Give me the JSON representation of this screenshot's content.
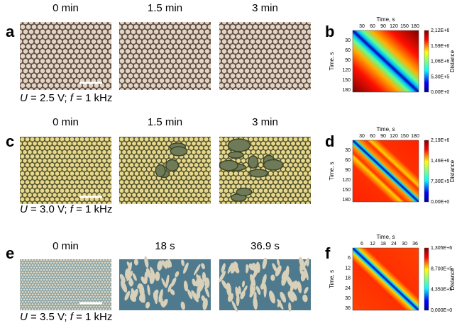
{
  "panels": [
    {
      "label": "a",
      "frames": [
        "0 min",
        "1.5 min",
        "3 min"
      ],
      "condition": {
        "v1": "U",
        "t1": " = 2.5 V; ",
        "v2": "f",
        "t2": " = 1 kHz"
      },
      "map": {
        "label": "b",
        "title": "Time, s",
        "ylabel": "Time, s",
        "xticks": [
          "30",
          "60",
          "90",
          "120",
          "150",
          "180"
        ],
        "yticks": [
          "30",
          "60",
          "90",
          "120",
          "150",
          "180"
        ],
        "cbar_label": "Distance",
        "cbar_ticks": [
          "2,12E+6",
          "1,59E+6",
          "1,06E+6",
          "5,30E+5",
          "0,00E+0"
        ]
      }
    },
    {
      "label": "c",
      "frames": [
        "0 min",
        "1.5 min",
        "3 min"
      ],
      "condition": {
        "v1": "U",
        "t1": " = 3.0 V; ",
        "v2": "f",
        "t2": " = 1 kHz"
      },
      "map": {
        "label": "d",
        "title": "Time, s",
        "ylabel": "Time, s",
        "xticks": [
          "30",
          "60",
          "90",
          "120",
          "150",
          "180"
        ],
        "yticks": [
          "30",
          "60",
          "90",
          "120",
          "150",
          "180"
        ],
        "cbar_label": "Distance",
        "cbar_ticks": [
          "2,19E+6",
          "1,46E+6",
          "7,30E+5",
          "0,00E+0"
        ]
      }
    },
    {
      "label": "e",
      "frames": [
        "0 min",
        "18 s",
        "36.9 s"
      ],
      "condition": {
        "v1": "U",
        "t1": " = 3.5 V; ",
        "v2": "f",
        "t2": " = 1 kHz"
      },
      "map": {
        "label": "f",
        "title": "Time, s",
        "ylabel": "Time, s",
        "xticks": [
          "6",
          "12",
          "18",
          "24",
          "30",
          "36"
        ],
        "yticks": [
          "6",
          "12",
          "18",
          "24",
          "30",
          "36"
        ],
        "cbar_label": "Distance",
        "cbar_ticks": [
          "1,305E+6",
          "8,700E+5",
          "4,350E+5",
          "0,000E+0"
        ]
      }
    }
  ]
}
